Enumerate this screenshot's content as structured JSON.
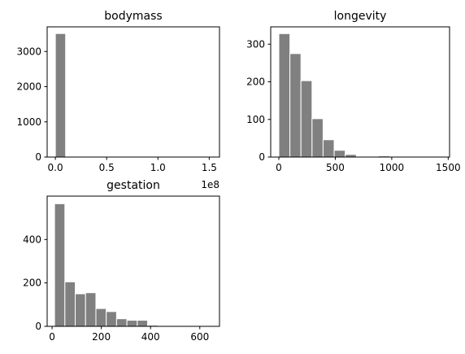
{
  "colors": {
    "bar_fill": "#808080",
    "bar_edge": "#ffffff",
    "axis": "#000000",
    "background": "#ffffff"
  },
  "chart_data": [
    {
      "type": "bar",
      "title": "bodymass",
      "x_tick_labels": [
        "0.0",
        "0.5",
        "1.0",
        "1.5"
      ],
      "x_tick_values": [
        0,
        0.5,
        1.0,
        1.5
      ],
      "x_offset_label": "1e8",
      "y_tick_labels": [
        "0",
        "1000",
        "2000",
        "3000"
      ],
      "y_tick_values": [
        0,
        1000,
        2000,
        3000
      ],
      "xlim": [
        -0.08,
        1.6
      ],
      "ylim": [
        0,
        3700
      ],
      "grid": false,
      "bins": [
        {
          "x0": 0.0,
          "x1": 0.1,
          "value": 3510
        }
      ]
    },
    {
      "type": "bar",
      "title": "longevity",
      "x_tick_labels": [
        "0",
        "500",
        "1000",
        "1500"
      ],
      "x_tick_values": [
        0,
        500,
        1000,
        1500
      ],
      "y_tick_labels": [
        "0",
        "100",
        "200",
        "300"
      ],
      "y_tick_values": [
        0,
        100,
        200,
        300
      ],
      "xlim": [
        -72,
        1512
      ],
      "ylim": [
        0,
        346
      ],
      "grid": false,
      "bins": [
        {
          "x0": 0,
          "x1": 98,
          "value": 328
        },
        {
          "x0": 98,
          "x1": 196,
          "value": 275
        },
        {
          "x0": 196,
          "x1": 294,
          "value": 203
        },
        {
          "x0": 294,
          "x1": 392,
          "value": 102
        },
        {
          "x0": 392,
          "x1": 490,
          "value": 46
        },
        {
          "x0": 490,
          "x1": 588,
          "value": 18
        },
        {
          "x0": 588,
          "x1": 686,
          "value": 7
        },
        {
          "x0": 686,
          "x1": 784,
          "value": 0
        },
        {
          "x0": 784,
          "x1": 882,
          "value": 0
        },
        {
          "x0": 882,
          "x1": 980,
          "value": 3
        },
        {
          "x0": 980,
          "x1": 1078,
          "value": 0
        },
        {
          "x0": 1078,
          "x1": 1176,
          "value": 0
        },
        {
          "x0": 1176,
          "x1": 1274,
          "value": 0
        },
        {
          "x0": 1274,
          "x1": 1372,
          "value": 0
        },
        {
          "x0": 1372,
          "x1": 1470,
          "value": 1
        }
      ]
    },
    {
      "type": "bar",
      "title": "gestation",
      "x_tick_labels": [
        "0",
        "200",
        "400",
        "600"
      ],
      "x_tick_values": [
        0,
        200,
        400,
        600
      ],
      "y_tick_labels": [
        "0",
        "200",
        "400"
      ],
      "y_tick_values": [
        0,
        200,
        400
      ],
      "xlim": [
        -20,
        680
      ],
      "ylim": [
        0,
        600
      ],
      "grid": false,
      "bins": [
        {
          "x0": 10,
          "x1": 52,
          "value": 565
        },
        {
          "x0": 52,
          "x1": 94,
          "value": 205
        },
        {
          "x0": 94,
          "x1": 136,
          "value": 150
        },
        {
          "x0": 136,
          "x1": 178,
          "value": 155
        },
        {
          "x0": 178,
          "x1": 220,
          "value": 82
        },
        {
          "x0": 220,
          "x1": 262,
          "value": 68
        },
        {
          "x0": 262,
          "x1": 304,
          "value": 35
        },
        {
          "x0": 304,
          "x1": 346,
          "value": 28
        },
        {
          "x0": 346,
          "x1": 388,
          "value": 28
        },
        {
          "x0": 388,
          "x1": 430,
          "value": 5
        },
        {
          "x0": 430,
          "x1": 472,
          "value": 3
        },
        {
          "x0": 472,
          "x1": 514,
          "value": 1
        },
        {
          "x0": 514,
          "x1": 556,
          "value": 1
        },
        {
          "x0": 556,
          "x1": 598,
          "value": 1
        },
        {
          "x0": 598,
          "x1": 640,
          "value": 1
        }
      ]
    }
  ]
}
